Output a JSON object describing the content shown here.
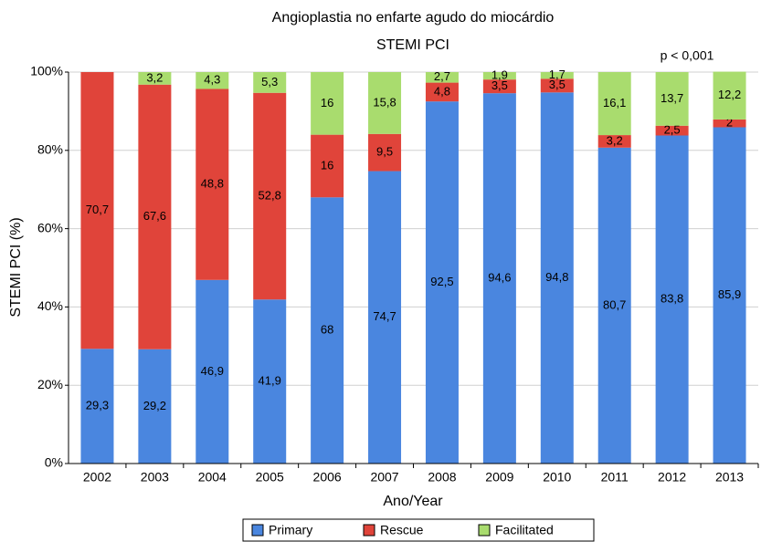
{
  "chart_data": {
    "type": "stacked_bar",
    "title": "Angioplastia no enfarte agudo do miocárdio",
    "subtitle": "STEMI PCI",
    "annotation": "p < 0,001",
    "x_label": "Ano/Year",
    "y_label": "STEMI PCI (%)",
    "categories": [
      "2002",
      "2003",
      "2004",
      "2005",
      "2006",
      "2007",
      "2008",
      "2009",
      "2010",
      "2011",
      "2012",
      "2013"
    ],
    "series": [
      {
        "name": "Primary",
        "color": "#4a86df",
        "values": [
          29.3,
          29.2,
          46.9,
          41.9,
          68,
          74.7,
          92.5,
          94.6,
          94.8,
          80.7,
          83.8,
          85.9
        ],
        "value_labels": [
          "29,3",
          "29,2",
          "46,9",
          "41,9",
          "68",
          "74,7",
          "92,5",
          "94,6",
          "94,8",
          "80,7",
          "83,8",
          "85,9"
        ]
      },
      {
        "name": "Rescue",
        "color": "#e0443a",
        "values": [
          70.7,
          67.6,
          48.8,
          52.8,
          16,
          9.5,
          4.8,
          3.5,
          3.5,
          3.2,
          2.5,
          2
        ],
        "value_labels": [
          "70,7",
          "67,6",
          "48,8",
          "52,8",
          "16",
          "9,5",
          "4,8",
          "3,5",
          "3,5",
          "3,2",
          "2,5",
          "2"
        ]
      },
      {
        "name": "Facilitated",
        "color": "#a9dc6e",
        "values": [
          null,
          3.2,
          4.3,
          5.3,
          16,
          15.8,
          2.7,
          1.9,
          1.7,
          16.1,
          13.7,
          12.2
        ],
        "value_labels": [
          null,
          "3,2",
          "4,3",
          "5,3",
          "16",
          "15,8",
          "2,7",
          "1,9",
          "1,7",
          "16,1",
          "13,7",
          "12,2"
        ]
      }
    ],
    "ylim": [
      0,
      100
    ],
    "yticks": [
      {
        "value": 0,
        "label": "0%"
      },
      {
        "value": 20,
        "label": "20%"
      },
      {
        "value": 40,
        "label": "40%"
      },
      {
        "value": 60,
        "label": "60%"
      },
      {
        "value": 80,
        "label": "80%"
      },
      {
        "value": 100,
        "label": "100%"
      }
    ],
    "grid": true,
    "legend": "bottom"
  }
}
